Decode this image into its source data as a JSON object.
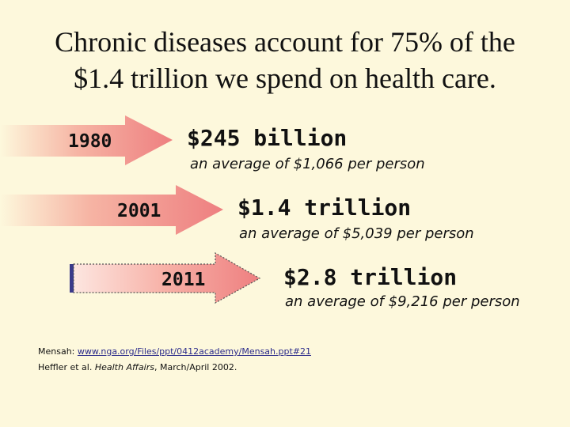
{
  "title": {
    "line1": "Chronic diseases account for 75% of the",
    "line2": "$1.4 trillion we spend on health care."
  },
  "rows": [
    {
      "year": "1980",
      "amount": "$245 billion",
      "average": "an average of $1,066 per person"
    },
    {
      "year": "2001",
      "amount": "$1.4 trillion",
      "average": "an average of $5,039 per person"
    },
    {
      "year": "2011",
      "amount": "$2.8 trillion",
      "average": "an average of $9,216 per person"
    }
  ],
  "source": {
    "prefix": "Mensah: ",
    "link": "www.nga.org/Files/ppt/0412academy/Mensah.ppt#21",
    "line2_prefix": "Heffler et al. ",
    "journal": "Health Affairs",
    "line2_suffix": ", March/April 2002."
  },
  "colors": {
    "background": "#fdf8dc",
    "arrow": "#f08a8a",
    "arrow_light": "#fdf8dc",
    "bar": "#3a3a8a"
  }
}
